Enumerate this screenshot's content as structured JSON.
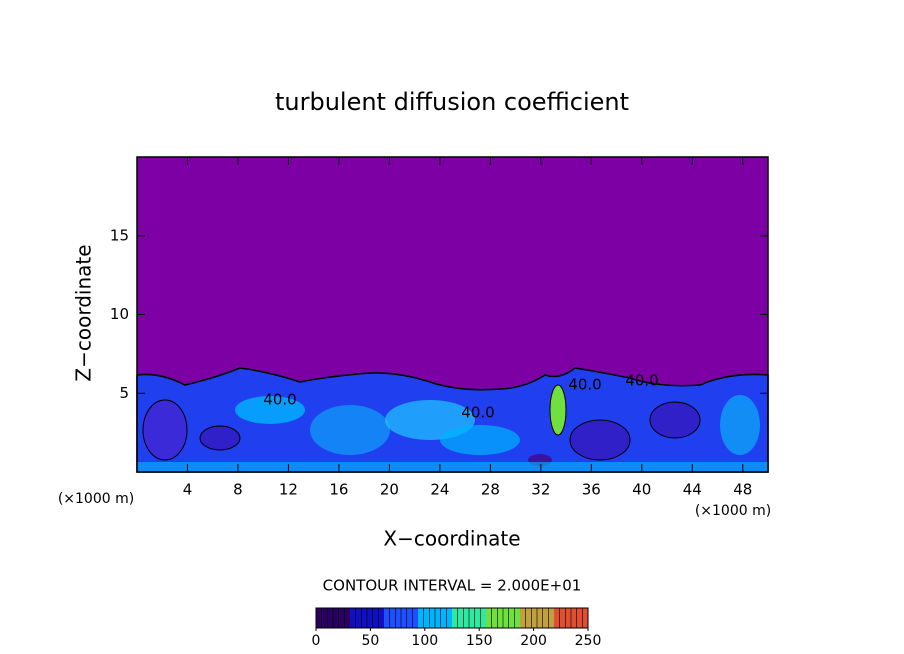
{
  "chart_data": {
    "type": "contour",
    "title": "turbulent diffusion coefficient",
    "x_label": "X−coordinate",
    "y_label": "Z−coordinate",
    "x_unit_label": "(×1000 m)",
    "xlim": [
      0,
      50
    ],
    "xticks": [
      4,
      8,
      12,
      16,
      20,
      24,
      28,
      32,
      36,
      40,
      44,
      48
    ],
    "ylim": [
      0,
      20
    ],
    "yticks": [
      5,
      10,
      15
    ],
    "contour_labels": [
      "40.0",
      "40.0",
      "40.0",
      "40.0"
    ],
    "colorbar": {
      "title": "CONTOUR INTERVAL = 2.000E+01",
      "clim": [
        0,
        250
      ],
      "ticks": [
        0,
        50,
        100,
        150,
        200,
        250
      ],
      "colors": [
        "#2a0060",
        "#1010c0",
        "#1e50ff",
        "#00b4ff",
        "#30e8a0",
        "#70e040",
        "#c0a040",
        "#e05030"
      ]
    }
  }
}
